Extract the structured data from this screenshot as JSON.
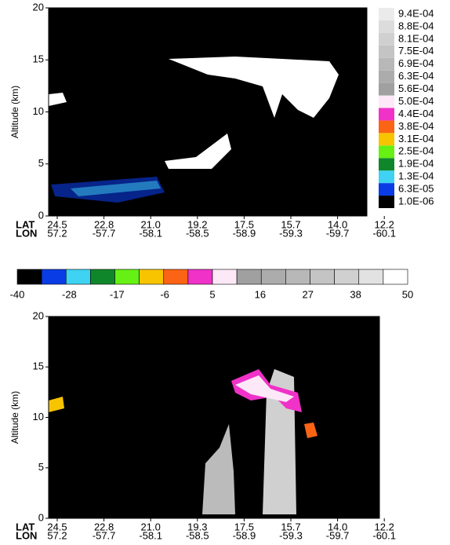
{
  "chart_data": [
    {
      "type": "curtain",
      "ylabel": "Altitude (km)",
      "ylim": [
        0,
        20
      ],
      "yticks": [
        0,
        5,
        10,
        15,
        20
      ],
      "lat_label": "LAT",
      "lat": [
        "24.5",
        "22.8",
        "21.0",
        "19.2",
        "17.5",
        "15.7",
        "14.0",
        "12.2"
      ],
      "lon_label": "LON",
      "lon": [
        "57.2",
        "-57.7",
        "-58.1",
        "-58.5",
        "-58.9",
        "-59.3",
        "-59.7",
        "-60.1"
      ],
      "colorbar": {
        "ticks": [
          {
            "value": 1e-06,
            "label": "1.0E-06"
          },
          {
            "value": 6.3e-05,
            "label": "6.3E-05"
          },
          {
            "value": 0.00013,
            "label": "1.3E-04"
          },
          {
            "value": 0.00019,
            "label": "1.9E-04"
          },
          {
            "value": 0.00025,
            "label": "2.5E-04"
          },
          {
            "value": 0.00031,
            "label": "3.1E-04"
          },
          {
            "value": 0.00038,
            "label": "3.8E-04"
          },
          {
            "value": 0.00044,
            "label": "4.4E-04"
          },
          {
            "value": 0.0005,
            "label": "5.0E-04"
          },
          {
            "value": 0.00056,
            "label": "5.6E-04"
          },
          {
            "value": 0.00063,
            "label": "6.3E-04"
          },
          {
            "value": 0.00069,
            "label": "6.9E-04"
          },
          {
            "value": 0.00075,
            "label": "7.5E-04"
          },
          {
            "value": 0.00081,
            "label": "8.1E-04"
          },
          {
            "value": 0.00088,
            "label": "8.8E-04"
          },
          {
            "value": 0.00094,
            "label": "9.4E-04"
          }
        ],
        "colors": [
          "#000000",
          "#0a3ce6",
          "#3fd2f2",
          "#10862a",
          "#66f014",
          "#f8c400",
          "#fa6414",
          "#f032c8",
          "#fde8f8",
          "#a0a0a0",
          "#acacac",
          "#b8b8b8",
          "#c4c4c4",
          "#d0d0d0",
          "#dcdcdc",
          "#ebebeb"
        ]
      }
    },
    {
      "type": "colorbar",
      "xlim": [
        -40,
        50
      ],
      "xticks": [
        -40,
        -28,
        -17,
        -6,
        5,
        16,
        27,
        38,
        50
      ],
      "colors": [
        "#000000",
        "#0a3ce6",
        "#3fd2f2",
        "#10862a",
        "#66f014",
        "#f8c400",
        "#fa6414",
        "#f032c8",
        "#fde8f8",
        "#a0a0a0",
        "#acacac",
        "#b8b8b8",
        "#c4c4c4",
        "#d0d0d0",
        "#e2e2e2",
        "#ffffff"
      ]
    },
    {
      "type": "curtain",
      "ylabel": "Altitude (km)",
      "ylim": [
        0,
        20
      ],
      "yticks": [
        0,
        5,
        10,
        15,
        20
      ],
      "lat_label": "LAT",
      "lat": [
        "24.5",
        "22.8",
        "21.0",
        "19.3",
        "17.5",
        "15.7",
        "14.0",
        "12.2"
      ],
      "lon_label": "LON",
      "lon": [
        "57.2",
        "-57.7",
        "-58.1",
        "-58.5",
        "-58.9",
        "-59.3",
        "-59.7",
        "-60.1"
      ]
    }
  ]
}
